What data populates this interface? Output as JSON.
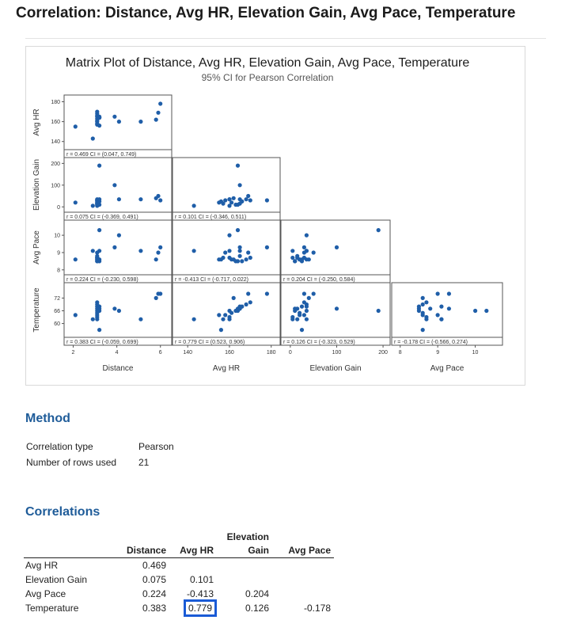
{
  "page": {
    "title": "Correlation: Distance, Avg HR, Elevation Gain, Avg Pace, Temperature"
  },
  "chart_data": {
    "type": "scatter",
    "title": "Matrix Plot of Distance, Avg HR, Elevation Gain, Avg Pace, Temperature",
    "subtitle": "95% CI for Pearson Correlation",
    "variables": [
      "Distance",
      "Avg HR",
      "Elevation Gain",
      "Avg Pace",
      "Temperature"
    ],
    "ranges": {
      "Distance": [
        1.8,
        6.3
      ],
      "Avg HR": [
        135,
        182
      ],
      "Elevation Gain": [
        -10,
        205
      ],
      "Avg Pace": [
        7.9,
        10.6
      ],
      "Temperature": [
        55,
        77
      ]
    },
    "ticks": {
      "Distance": [
        2,
        4,
        6
      ],
      "Avg HR": [
        140,
        160,
        180
      ],
      "Elevation Gain": [
        0,
        100,
        200
      ],
      "Avg Pace": [
        8,
        9,
        10
      ],
      "Temperature": [
        60,
        66,
        72
      ]
    },
    "tick_labels": {
      "Distance": [
        "2",
        "4",
        "6"
      ],
      "Avg HR": [
        "140",
        "160",
        "180"
      ],
      "Elevation Gain": [
        "0",
        "100",
        "200"
      ],
      "Avg Pace": [
        "8",
        "9",
        "10"
      ],
      "Temperature": [
        "60",
        "66",
        "72"
      ]
    },
    "data": {
      "Distance": [
        2.1,
        2.9,
        3.1,
        3.1,
        3.1,
        3.1,
        3.1,
        3.1,
        3.1,
        3.1,
        3.1,
        3.2,
        3.2,
        3.2,
        3.2,
        3.9,
        4.1,
        5.1,
        5.8,
        5.9,
        6.0
      ],
      "Avg HR": [
        155,
        143,
        170,
        168,
        166,
        165,
        163,
        161,
        160,
        158,
        157,
        156,
        164,
        165,
        164,
        165,
        160,
        160,
        162,
        169,
        178
      ],
      "Elevation Gain": [
        20,
        5,
        30,
        35,
        25,
        15,
        10,
        20,
        5,
        30,
        15,
        25,
        190,
        35,
        10,
        100,
        35,
        35,
        40,
        50,
        30
      ],
      "Avg Pace": [
        8.6,
        9.1,
        8.7,
        8.6,
        8.5,
        8.8,
        8.5,
        8.6,
        8.7,
        9.0,
        8.7,
        8.6,
        10.3,
        9.1,
        8.5,
        9.3,
        10.0,
        9.1,
        8.6,
        9.0,
        9.3
      ],
      "Temperature": [
        64,
        62,
        70,
        69,
        68,
        67,
        66,
        65,
        63,
        64,
        62,
        57,
        66,
        68,
        67,
        67,
        66,
        62,
        72,
        74,
        74
      ]
    },
    "cells": [
      {
        "row": "Avg HR",
        "col": "Distance",
        "label": "r = 0.469  CI = (0.047, 0.749)"
      },
      {
        "row": "Elevation Gain",
        "col": "Distance",
        "label": "r = 0.075  CI = (-0.369, 0.491)"
      },
      {
        "row": "Elevation Gain",
        "col": "Avg HR",
        "label": "r = 0.101  CI = (-0.346, 0.511)"
      },
      {
        "row": "Avg Pace",
        "col": "Distance",
        "label": "r = 0.224  CI = (-0.230, 0.598)"
      },
      {
        "row": "Avg Pace",
        "col": "Avg HR",
        "label": "r = -0.413  CI = (-0.717, 0.022)"
      },
      {
        "row": "Avg Pace",
        "col": "Elevation Gain",
        "label": "r = 0.204  CI = (-0.250, 0.584)"
      },
      {
        "row": "Temperature",
        "col": "Distance",
        "label": "r = 0.383  CI = (-0.059, 0.699)"
      },
      {
        "row": "Temperature",
        "col": "Avg HR",
        "label": "r = 0.779  CI = (0.523, 0.906)"
      },
      {
        "row": "Temperature",
        "col": "Elevation Gain",
        "label": "r = 0.126  CI = (-0.323, 0.529)"
      },
      {
        "row": "Temperature",
        "col": "Avg Pace",
        "label": "r = -0.178  CI = (-0.566, 0.274)"
      }
    ],
    "point_color": "#1f5ea8"
  },
  "method": {
    "heading": "Method",
    "rows": [
      {
        "label": "Correlation type",
        "value": "Pearson"
      },
      {
        "label": "Number of rows used",
        "value": "21"
      }
    ]
  },
  "correlations": {
    "heading": "Correlations",
    "col_headers": [
      "Distance",
      "Avg HR",
      "Elevation Gain",
      "Avg Pace"
    ],
    "rows": [
      {
        "label": "Avg HR",
        "values": [
          "0.469",
          "",
          "",
          ""
        ]
      },
      {
        "label": "Elevation Gain",
        "values": [
          "0.075",
          "0.101",
          "",
          ""
        ]
      },
      {
        "label": "Avg Pace",
        "values": [
          "0.224",
          "-0.413",
          "0.204",
          ""
        ]
      },
      {
        "label": "Temperature",
        "values": [
          "0.383",
          "0.779",
          "0.126",
          "-0.178"
        ]
      }
    ],
    "highlight": {
      "row": 3,
      "col": 1,
      "color": "#1a5bd6"
    }
  }
}
